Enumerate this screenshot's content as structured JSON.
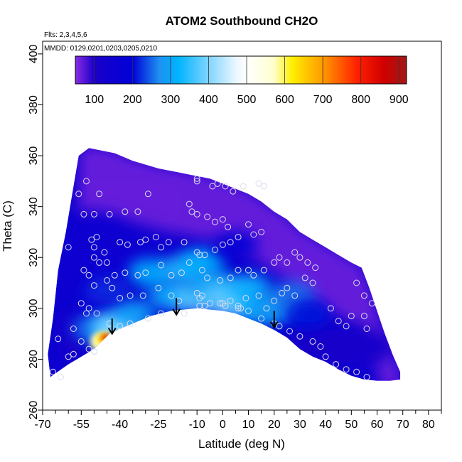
{
  "chart_data": {
    "type": "heatmap",
    "title": "ATOM2 Southbound CH2O",
    "subtitle_flights": "Flts: 2,3,4,5,6",
    "subtitle_dates": "MMDD: 0129,0201,0203,0205,0210",
    "xlabel": "Latitude (deg N)",
    "ylabel": "Theta (C)",
    "xlim": [
      -70,
      85
    ],
    "ylim": [
      260,
      405
    ],
    "x_ticks": [
      -70,
      -55,
      -40,
      -25,
      -10,
      0,
      10,
      20,
      30,
      40,
      50,
      60,
      70,
      80
    ],
    "x_ticks_labeled": [
      "-70",
      "-55",
      "-40",
      "-25",
      "-10",
      "0",
      "10",
      "20",
      "30",
      "40",
      "50",
      "60",
      "70",
      "80"
    ],
    "x_minor_ticks": [
      -65,
      -60,
      -50,
      -45,
      -35,
      -30,
      -20,
      -15,
      -5,
      5,
      15,
      25,
      35,
      45,
      55,
      65,
      75,
      85
    ],
    "y_ticks": [
      260,
      280,
      300,
      320,
      340,
      360,
      380,
      400
    ],
    "y_ticks_labeled": [
      "260",
      "280",
      "300",
      "320",
      "340",
      "360",
      "380",
      "400"
    ],
    "colorbar": {
      "range": [
        50,
        920
      ],
      "ticks": [
        "100",
        "200",
        "300",
        "400",
        "500",
        "600",
        "700",
        "800",
        "900"
      ],
      "stops": [
        {
          "v": 50,
          "c": "#8a2be2"
        },
        {
          "v": 100,
          "c": "#1a00c8"
        },
        {
          "v": 200,
          "c": "#0000d8"
        },
        {
          "v": 270,
          "c": "#1f8ff0"
        },
        {
          "v": 320,
          "c": "#00b4ff"
        },
        {
          "v": 400,
          "c": "#7fd4ff"
        },
        {
          "v": 470,
          "c": "#e8f6ff"
        },
        {
          "v": 500,
          "c": "#ffffff"
        },
        {
          "v": 570,
          "c": "#ffffd0"
        },
        {
          "v": 620,
          "c": "#ffee00"
        },
        {
          "v": 700,
          "c": "#ff9a00"
        },
        {
          "v": 790,
          "c": "#ff2000"
        },
        {
          "v": 860,
          "c": "#d00000"
        },
        {
          "v": 920,
          "c": "#a01818"
        }
      ]
    },
    "coverage_top": [
      [
        -56,
        360
      ],
      [
        -52,
        363
      ],
      [
        -42,
        361
      ],
      [
        -35,
        358
      ],
      [
        -25,
        355
      ],
      [
        -15,
        353
      ],
      [
        -10,
        352
      ],
      [
        -5,
        351
      ],
      [
        0,
        349
      ],
      [
        5,
        347
      ],
      [
        10,
        345
      ],
      [
        15,
        342
      ],
      [
        20,
        338
      ],
      [
        25,
        335
      ],
      [
        30,
        330
      ],
      [
        35,
        327
      ],
      [
        40,
        324
      ],
      [
        45,
        321
      ],
      [
        50,
        318
      ],
      [
        54,
        316
      ],
      [
        57,
        308
      ],
      [
        60,
        299
      ],
      [
        63,
        290
      ],
      [
        66,
        282
      ],
      [
        69,
        275
      ]
    ],
    "coverage_bottom": [
      [
        -67,
        273
      ],
      [
        -60,
        278
      ],
      [
        -50,
        284
      ],
      [
        -44,
        290
      ],
      [
        -40,
        292
      ],
      [
        -35,
        294
      ],
      [
        -28,
        297
      ],
      [
        -20,
        299
      ],
      [
        -10,
        300
      ],
      [
        -5,
        299.5
      ],
      [
        0,
        299
      ],
      [
        5,
        298
      ],
      [
        10,
        296
      ],
      [
        15,
        294
      ],
      [
        20,
        291.5
      ],
      [
        25,
        288.5
      ],
      [
        30,
        284
      ],
      [
        35,
        281
      ],
      [
        40,
        279
      ],
      [
        45,
        276
      ],
      [
        50,
        273.5
      ],
      [
        55,
        272
      ],
      [
        60,
        271.5
      ],
      [
        65,
        271.5
      ],
      [
        69,
        272
      ]
    ],
    "coverage_left": [
      [
        -67,
        273
      ],
      [
        -68,
        282
      ],
      [
        -66,
        296
      ],
      [
        -64,
        315
      ],
      [
        -61,
        330
      ],
      [
        -58,
        348
      ],
      [
        -56,
        360
      ]
    ],
    "field_blobs": [
      {
        "lat": -50,
        "theta": 300,
        "v": 175
      },
      {
        "lat": -50,
        "theta": 292,
        "v": 250
      },
      {
        "lat": -44,
        "theta": 292,
        "v": 340
      },
      {
        "lat": -40,
        "theta": 292.5,
        "v": 420
      },
      {
        "lat": -35,
        "theta": 298,
        "v": 300
      },
      {
        "lat": -28,
        "theta": 314,
        "v": 320
      },
      {
        "lat": -20,
        "theta": 305,
        "v": 330
      },
      {
        "lat": -15,
        "theta": 315,
        "v": 340
      },
      {
        "lat": -10,
        "theta": 304,
        "v": 380
      },
      {
        "lat": -8,
        "theta": 318,
        "v": 320
      },
      {
        "lat": -5,
        "theta": 310,
        "v": 300
      },
      {
        "lat": 0,
        "theta": 305,
        "v": 370
      },
      {
        "lat": 5,
        "theta": 302,
        "v": 390
      },
      {
        "lat": 10,
        "theta": 308,
        "v": 330
      },
      {
        "lat": 15,
        "theta": 300,
        "v": 320
      },
      {
        "lat": 20,
        "theta": 300,
        "v": 280
      },
      {
        "lat": 27,
        "theta": 305,
        "v": 260
      },
      {
        "lat": 33,
        "theta": 298,
        "v": 210
      },
      {
        "lat": -45,
        "theta": 307,
        "v": 220
      },
      {
        "lat": 5,
        "theta": 325,
        "v": 180
      }
    ],
    "hot_spot": {
      "lat": -46,
      "theta": 288.5,
      "v": 860
    },
    "sample_points": [
      [
        -60,
        324
      ],
      [
        -56,
        345
      ],
      [
        -53,
        350
      ],
      [
        -48,
        345
      ],
      [
        -54,
        337
      ],
      [
        -50,
        337
      ],
      [
        -44,
        337
      ],
      [
        -38,
        338
      ],
      [
        -33,
        338
      ],
      [
        -29,
        345
      ],
      [
        -10,
        351
      ],
      [
        -10,
        350
      ],
      [
        -4,
        348
      ],
      [
        -2,
        349
      ],
      [
        1,
        348
      ],
      [
        4,
        346
      ],
      [
        8,
        348
      ],
      [
        14,
        349
      ],
      [
        16,
        348
      ],
      [
        -13,
        341
      ],
      [
        -12,
        338
      ],
      [
        -10,
        337
      ],
      [
        -6,
        336
      ],
      [
        -3,
        334
      ],
      [
        0,
        335
      ],
      [
        2,
        332
      ],
      [
        -51,
        327
      ],
      [
        -50,
        324
      ],
      [
        -49,
        328
      ],
      [
        -46,
        322
      ],
      [
        -40,
        326
      ],
      [
        -37,
        325
      ],
      [
        -32,
        326
      ],
      [
        -30,
        327
      ],
      [
        -26,
        328
      ],
      [
        -24,
        324
      ],
      [
        -21,
        326
      ],
      [
        -15,
        326
      ],
      [
        -10,
        322
      ],
      [
        -9,
        321
      ],
      [
        -7,
        321
      ],
      [
        -3,
        323
      ],
      [
        0,
        325
      ],
      [
        3,
        326
      ],
      [
        6,
        328
      ],
      [
        10,
        333
      ],
      [
        12,
        329
      ],
      [
        15,
        330
      ],
      [
        -50,
        320
      ],
      [
        -48,
        318
      ],
      [
        -45,
        318
      ],
      [
        -42,
        313
      ],
      [
        -38,
        314
      ],
      [
        -33,
        313
      ],
      [
        -30,
        314
      ],
      [
        -24,
        317
      ],
      [
        -20,
        313
      ],
      [
        -16,
        314
      ],
      [
        -13,
        318
      ],
      [
        -8,
        315
      ],
      [
        -6,
        312
      ],
      [
        -1,
        311
      ],
      [
        3,
        312
      ],
      [
        6,
        315
      ],
      [
        10,
        315
      ],
      [
        12,
        313
      ],
      [
        16,
        315
      ],
      [
        20,
        318
      ],
      [
        22,
        320
      ],
      [
        25,
        318
      ],
      [
        28,
        322
      ],
      [
        30,
        320
      ],
      [
        33,
        318
      ],
      [
        36,
        316
      ],
      [
        -54,
        315
      ],
      [
        -52,
        313
      ],
      [
        -50,
        309
      ],
      [
        -45,
        311
      ],
      [
        -43,
        308
      ],
      [
        -40,
        304
      ],
      [
        -36,
        305
      ],
      [
        -31,
        305
      ],
      [
        -25,
        308
      ],
      [
        -20,
        305
      ],
      [
        -17,
        303
      ],
      [
        -10,
        306
      ],
      [
        -9,
        304
      ],
      [
        -8,
        305
      ],
      [
        -5,
        302
      ],
      [
        0,
        302
      ],
      [
        3,
        303
      ],
      [
        6,
        301
      ],
      [
        9,
        304
      ],
      [
        14,
        305
      ],
      [
        17,
        300
      ],
      [
        20,
        303
      ],
      [
        23,
        306
      ],
      [
        25,
        308
      ],
      [
        28,
        305
      ],
      [
        32,
        312
      ],
      [
        35,
        310
      ],
      [
        -55,
        302
      ],
      [
        -53,
        298
      ],
      [
        -52,
        300
      ],
      [
        -49,
        298
      ],
      [
        -44,
        294
      ],
      [
        -40,
        293
      ],
      [
        -36,
        294
      ],
      [
        -29,
        296
      ],
      [
        -24,
        298
      ],
      [
        -15,
        298
      ],
      [
        -9,
        301
      ],
      [
        -7,
        301
      ],
      [
        -1,
        302
      ],
      [
        1,
        301
      ],
      [
        6,
        300
      ],
      [
        7,
        300
      ],
      [
        10,
        299
      ],
      [
        15,
        296
      ],
      [
        20,
        294
      ],
      [
        22,
        293
      ],
      [
        26,
        291
      ],
      [
        30,
        289
      ],
      [
        35,
        287
      ],
      [
        38,
        285
      ],
      [
        42,
        300
      ],
      [
        45,
        295
      ],
      [
        48,
        293
      ],
      [
        50,
        297
      ],
      [
        52,
        310
      ],
      [
        55,
        305
      ],
      [
        58,
        302
      ],
      [
        56,
        292
      ],
      [
        55,
        297
      ],
      [
        -58,
        292
      ],
      [
        -55,
        287
      ],
      [
        -52,
        284
      ],
      [
        -50,
        283
      ],
      [
        -58,
        282
      ],
      [
        40,
        281
      ],
      [
        44,
        278
      ],
      [
        48,
        276
      ],
      [
        52,
        275
      ],
      [
        56,
        273
      ],
      [
        -64,
        288
      ],
      [
        -66,
        275
      ],
      [
        -63,
        273
      ],
      [
        -60,
        281
      ]
    ]
  }
}
